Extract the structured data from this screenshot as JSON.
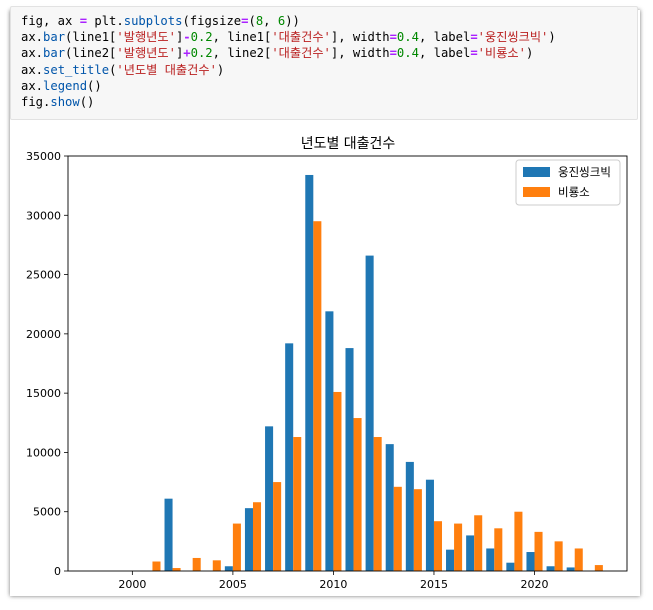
{
  "code_cell": {
    "lines": [
      [
        {
          "t": "fig, ax ",
          "c": "plain"
        },
        {
          "t": "=",
          "c": "op"
        },
        {
          "t": " plt.",
          "c": "plain"
        },
        {
          "t": "subplots",
          "c": "attr"
        },
        {
          "t": "(figsize",
          "c": "plain"
        },
        {
          "t": "=",
          "c": "op"
        },
        {
          "t": "(",
          "c": "plain"
        },
        {
          "t": "8",
          "c": "num"
        },
        {
          "t": ", ",
          "c": "plain"
        },
        {
          "t": "6",
          "c": "num"
        },
        {
          "t": "))",
          "c": "plain"
        }
      ],
      [
        {
          "t": "ax.",
          "c": "plain"
        },
        {
          "t": "bar",
          "c": "attr"
        },
        {
          "t": "(line1[",
          "c": "plain"
        },
        {
          "t": "'발행년도'",
          "c": "str"
        },
        {
          "t": "]",
          "c": "plain"
        },
        {
          "t": "-",
          "c": "op"
        },
        {
          "t": "0.2",
          "c": "num"
        },
        {
          "t": ", line1[",
          "c": "plain"
        },
        {
          "t": "'대출건수'",
          "c": "str"
        },
        {
          "t": "], width",
          "c": "plain"
        },
        {
          "t": "=",
          "c": "op"
        },
        {
          "t": "0.4",
          "c": "num"
        },
        {
          "t": ", label",
          "c": "plain"
        },
        {
          "t": "=",
          "c": "op"
        },
        {
          "t": "'웅진씽크빅'",
          "c": "str"
        },
        {
          "t": ")",
          "c": "plain"
        }
      ],
      [
        {
          "t": "ax.",
          "c": "plain"
        },
        {
          "t": "bar",
          "c": "attr"
        },
        {
          "t": "(line2[",
          "c": "plain"
        },
        {
          "t": "'발행년도'",
          "c": "str"
        },
        {
          "t": "]",
          "c": "plain"
        },
        {
          "t": "+",
          "c": "op"
        },
        {
          "t": "0.2",
          "c": "num"
        },
        {
          "t": ", line2[",
          "c": "plain"
        },
        {
          "t": "'대출건수'",
          "c": "str"
        },
        {
          "t": "], width",
          "c": "plain"
        },
        {
          "t": "=",
          "c": "op"
        },
        {
          "t": "0.4",
          "c": "num"
        },
        {
          "t": ", label",
          "c": "plain"
        },
        {
          "t": "=",
          "c": "op"
        },
        {
          "t": "'비룡소'",
          "c": "str"
        },
        {
          "t": ")",
          "c": "plain"
        }
      ],
      [
        {
          "t": "ax.",
          "c": "plain"
        },
        {
          "t": "set_title",
          "c": "attr"
        },
        {
          "t": "(",
          "c": "plain"
        },
        {
          "t": "'년도별 대출건수'",
          "c": "str"
        },
        {
          "t": ")",
          "c": "plain"
        }
      ],
      [
        {
          "t": "ax.",
          "c": "plain"
        },
        {
          "t": "legend",
          "c": "attr"
        },
        {
          "t": "()",
          "c": "plain"
        }
      ],
      [
        {
          "t": "fig.",
          "c": "plain"
        },
        {
          "t": "show",
          "c": "attr"
        },
        {
          "t": "()",
          "c": "plain"
        }
      ]
    ]
  },
  "chart_data": {
    "type": "bar",
    "title": "년도별 대출건수",
    "xlabel": "",
    "ylabel": "",
    "xlim": [
      1996.8,
      2024.6
    ],
    "ylim": [
      0,
      35000
    ],
    "xticks": [
      2000,
      2005,
      2010,
      2015,
      2020
    ],
    "yticks": [
      0,
      5000,
      10000,
      15000,
      20000,
      25000,
      30000,
      35000
    ],
    "bar_width": 0.4,
    "legend_position": "top-right",
    "series": [
      {
        "name": "웅진씽크빅",
        "color": "#1f77b4",
        "offset": -0.2,
        "x": [
          2002,
          2005,
          2006,
          2007,
          2008,
          2009,
          2010,
          2011,
          2012,
          2013,
          2014,
          2015,
          2016,
          2017,
          2018,
          2019,
          2020,
          2021,
          2022
        ],
        "values": [
          6100,
          400,
          5300,
          12200,
          19200,
          33400,
          21900,
          18800,
          26600,
          10700,
          9200,
          7700,
          1800,
          3000,
          1900,
          700,
          1600,
          400,
          300
        ]
      },
      {
        "name": "비룡소",
        "color": "#ff7f0e",
        "offset": 0.2,
        "x": [
          2001,
          2002,
          2003,
          2004,
          2005,
          2006,
          2007,
          2008,
          2009,
          2010,
          2011,
          2012,
          2013,
          2014,
          2015,
          2016,
          2017,
          2018,
          2019,
          2020,
          2021,
          2022,
          2023
        ],
        "values": [
          800,
          250,
          1100,
          900,
          4000,
          5800,
          7500,
          11300,
          29500,
          15100,
          12900,
          11300,
          7100,
          6900,
          4200,
          4000,
          4700,
          3600,
          5000,
          3300,
          2500,
          1900,
          500
        ]
      }
    ]
  }
}
